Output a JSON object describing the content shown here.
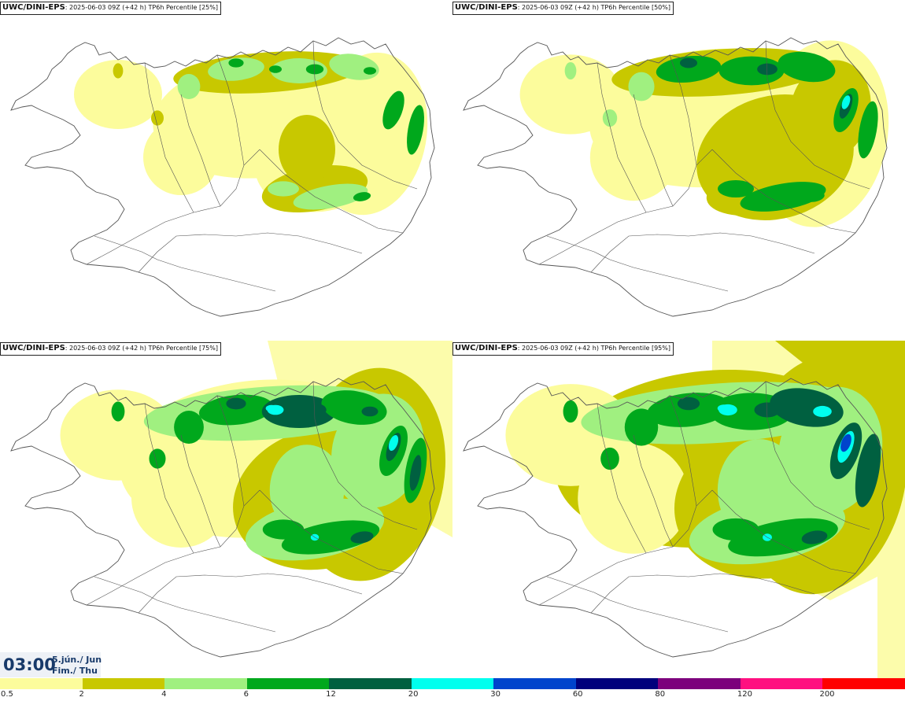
{
  "panels": [
    {
      "source": "UWC/DINI-EPS",
      "meta": ": 2025-06-03 09Z (+42 h) TP6h Percentile [25%]",
      "level": 1
    },
    {
      "source": "UWC/DINI-EPS",
      "meta": ": 2025-06-03 09Z (+42 h) TP6h Percentile [50%]",
      "level": 2
    },
    {
      "source": "UWC/DINI-EPS",
      "meta": ": 2025-06-03 09Z (+42 h) TP6h Percentile [75%]",
      "level": 3
    },
    {
      "source": "UWC/DINI-EPS",
      "meta": ": 2025-06-03 09Z (+42 h) TP6h Percentile [95%]",
      "level": 4
    }
  ],
  "valid_time": {
    "time": "03:00",
    "date_line1": "5.jún./ Jun",
    "date_line2": "Fim./ Thu"
  },
  "legend": {
    "labels": [
      "0.5",
      "2",
      "4",
      "6",
      "12",
      "20",
      "30",
      "60",
      "80",
      "120",
      "200"
    ],
    "colors": [
      "#fcfc9c",
      "#c8c800",
      "#a0f080",
      "#00a81c",
      "#006040",
      "#00ffee",
      "#0044cc",
      "#00007c",
      "#7c007c",
      "#ff1080",
      "#ff0000"
    ]
  },
  "colors": {
    "land_outline": "#555555",
    "background": "#ffffff",
    "time_text": "#183a6a"
  }
}
